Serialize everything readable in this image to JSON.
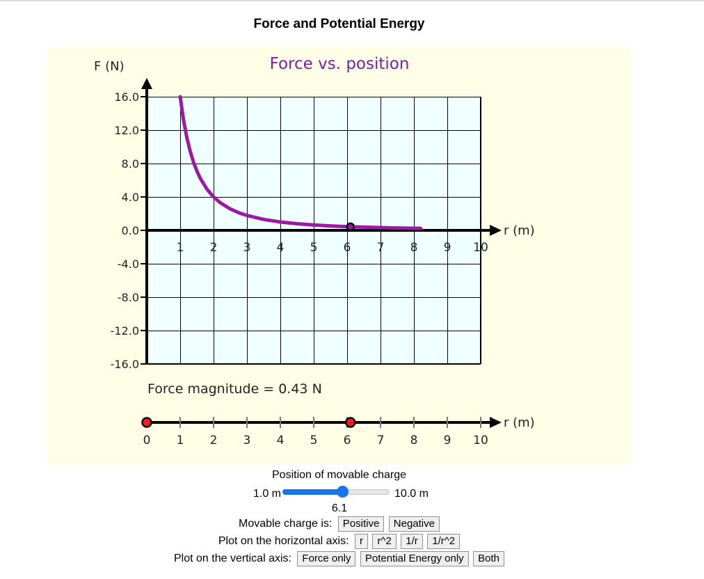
{
  "page": {
    "title": "Force and Potential Energy"
  },
  "graph": {
    "title": "Force vs. position",
    "y_axis_label": "F (N)",
    "x_axis_label": "r (m)",
    "y_ticks": [
      "16.0",
      "12.0",
      "8.0",
      "4.0",
      "0.0",
      "-4.0",
      "-8.0",
      "-12.0",
      "-16.0"
    ],
    "x_ticks": [
      "1",
      "2",
      "3",
      "4",
      "5",
      "6",
      "7",
      "8",
      "9",
      "10"
    ],
    "readout": "Force magnitude = 0.43 N",
    "colors": {
      "curve": "#9a1aa5",
      "grid_bg": "#f0ffff",
      "panel_bg": "#ffffe8"
    }
  },
  "chart_data": {
    "type": "line",
    "title": "Force vs. position",
    "xlabel": "r (m)",
    "ylabel": "F (N)",
    "xlim": [
      0,
      10
    ],
    "ylim": [
      -16,
      16
    ],
    "grid": true,
    "series": [
      {
        "x": [
          1.0,
          1.1,
          1.2,
          1.3,
          1.4,
          1.5,
          1.6,
          1.8,
          2.0,
          2.2,
          2.5,
          2.8,
          3.0,
          3.5,
          4.0,
          4.5,
          5.0,
          5.5,
          6.0,
          6.5,
          7.0,
          7.5,
          8.0,
          8.2
        ],
        "y": [
          16.0,
          13.22,
          11.11,
          9.47,
          8.16,
          7.11,
          6.25,
          4.94,
          4.0,
          3.31,
          2.56,
          2.04,
          1.78,
          1.31,
          1.0,
          0.79,
          0.64,
          0.53,
          0.44,
          0.38,
          0.33,
          0.28,
          0.25,
          0.24
        ]
      }
    ],
    "marker": {
      "x": 6.1,
      "y": 0.43
    }
  },
  "track": {
    "ticks": [
      "0",
      "1",
      "2",
      "3",
      "4",
      "5",
      "6",
      "7",
      "8",
      "9",
      "10"
    ],
    "axis_label": "r (m)",
    "fixed_charge_position": 0,
    "movable_charge_position": 6.1
  },
  "controls": {
    "position_label": "Position of movable charge",
    "slider_min_label": "1.0 m",
    "slider_max_label": "10.0 m",
    "slider_min": 1.0,
    "slider_max": 10.0,
    "slider_value": 6.1,
    "slider_value_text": "6.1",
    "charge_label": "Movable charge is:",
    "charge_buttons": [
      "Positive",
      "Negative"
    ],
    "horizontal_label": "Plot on the horizontal axis:",
    "horizontal_buttons": [
      "r",
      "r^2",
      "1/r",
      "1/r^2"
    ],
    "vertical_label": "Plot on the vertical axis:",
    "vertical_buttons": [
      "Force only",
      "Potential Energy only",
      "Both"
    ]
  }
}
